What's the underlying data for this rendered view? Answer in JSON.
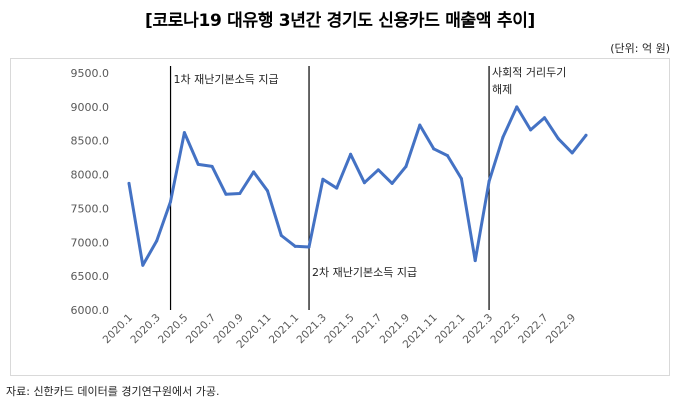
{
  "title": "[코로나19 대유행 3년간 경기도 신용카드 매출액 추이]",
  "unit": "(단위: 억 원)",
  "source": "자료: 신한카드 데이터를 경기연구원에서 가공.",
  "chart_data": {
    "type": "line",
    "title": "[코로나19 대유행 3년간 경기도 신용카드 매출액 추이]",
    "xlabel": "",
    "ylabel": "",
    "ylim": [
      6000,
      9500
    ],
    "yticks": [
      "6000.0",
      "6500.0",
      "7000.0",
      "7500.0",
      "8000.0",
      "8500.0",
      "9000.0",
      "9500.0"
    ],
    "grid": false,
    "x": [
      "2020.1",
      "2020.2",
      "2020.3",
      "2020.4",
      "2020.5",
      "2020.6",
      "2020.7",
      "2020.8",
      "2020.9",
      "2020.10",
      "2020.11",
      "2020.12",
      "2021.1",
      "2021.2",
      "2021.3",
      "2021.4",
      "2021.5",
      "2021.6",
      "2021.7",
      "2021.8",
      "2021.9",
      "2021.10",
      "2021.11",
      "2021.12",
      "2022.1",
      "2022.2",
      "2022.3",
      "2022.4",
      "2022.5",
      "2022.6",
      "2022.7",
      "2022.8",
      "2022.9",
      "2022.10"
    ],
    "xtick_labels": [
      "2020.1",
      "2020.3",
      "2020.5",
      "2020.7",
      "2020.9",
      "2020.11",
      "2021.1",
      "2021.3",
      "2021.5",
      "2021.7",
      "2021.9",
      "2021.11",
      "2022.1",
      "2022.3",
      "2022.5",
      "2022.7",
      "2022.9"
    ],
    "series": [
      {
        "values": [
          7870,
          6660,
          7020,
          7600,
          8620,
          8150,
          8120,
          7710,
          7720,
          8040,
          7760,
          7100,
          6940,
          6930,
          7930,
          7800,
          8300,
          7880,
          8070,
          7870,
          8120,
          8730,
          8380,
          8280,
          7940,
          6730,
          7900,
          8550,
          9000,
          8660,
          8840,
          8530,
          8320,
          8580
        ],
        "color": "#4472c4"
      }
    ],
    "annotations": [
      {
        "at": "2020.4",
        "text": "1차 재난기본소득 지급"
      },
      {
        "at": "2021.2",
        "text": "2차 재난기본소득 지급"
      },
      {
        "at": "2022.3",
        "text": "사회적 거리두기 해제"
      }
    ]
  }
}
